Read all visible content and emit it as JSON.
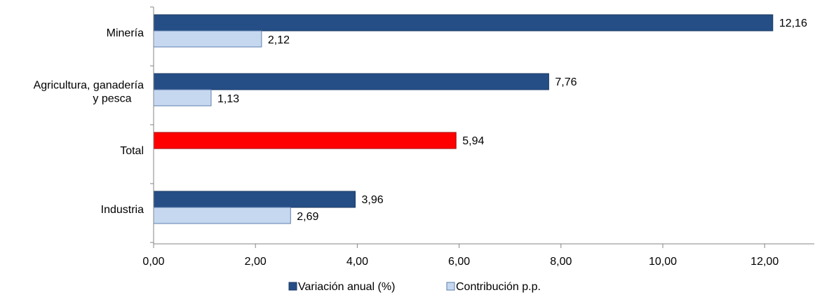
{
  "chart_data": {
    "type": "bar",
    "orientation": "horizontal",
    "categories": [
      [
        "Minería"
      ],
      [
        "Agricultura, ganadería",
        "y pesca"
      ],
      [
        "Total"
      ],
      [
        "Industria"
      ]
    ],
    "series": [
      {
        "name": "Variación anual (%)",
        "color": "#254E86",
        "values": [
          12.16,
          7.76,
          5.94,
          3.96
        ],
        "labels": [
          "12,16",
          "7,76",
          "5,94",
          "3,96"
        ],
        "highlight": {
          "index": 2,
          "color": "#FF0000"
        }
      },
      {
        "name": "Contribución p.p.",
        "color": "#C6D8F0",
        "values": [
          2.12,
          1.13,
          null,
          2.69
        ],
        "labels": [
          "2,12",
          "1,13",
          "",
          "2,69"
        ]
      }
    ],
    "x_ticks": [
      "0,00",
      "2,00",
      "4,00",
      "6,00",
      "8,00",
      "10,00",
      "12,00"
    ],
    "xlim": [
      0,
      12.9
    ],
    "grid": false,
    "legend_position": "bottom"
  }
}
